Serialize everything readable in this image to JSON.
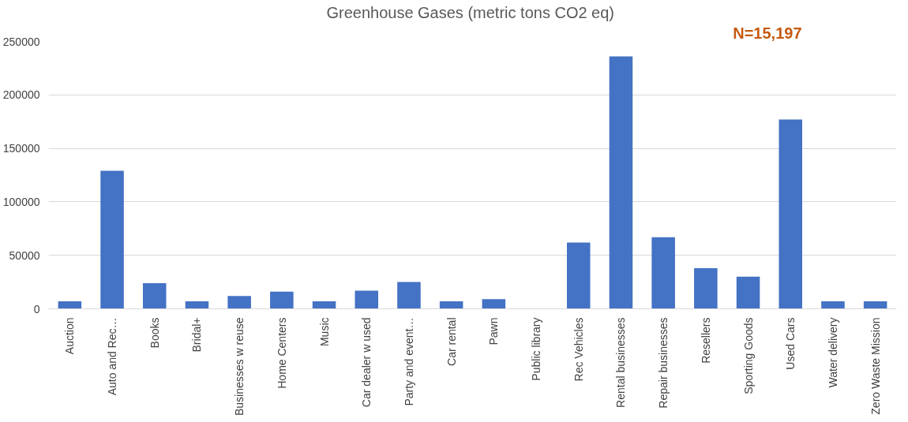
{
  "chart_data": {
    "type": "bar",
    "title": "Greenhouse  Gases (metric tons CO2 eq)",
    "categories": [
      "Auction",
      "Auto and Rec…",
      "Books",
      "Bridal+",
      "Businesses w reuse",
      "Home Centers",
      "Music",
      "Car dealer w used",
      "Party and event…",
      "Car rental",
      "Pawn",
      "Public library",
      "Rec Vehicles",
      "Rental businesses",
      "Repair businesses",
      "Resellers",
      "Sporting Goods",
      "Used Cars",
      "Water delivery",
      "Zero Waste Mission"
    ],
    "values": [
      7000,
      129000,
      24000,
      7000,
      12000,
      16000,
      7000,
      17000,
      25000,
      7000,
      9000,
      0,
      62000,
      236000,
      67000,
      38000,
      30000,
      177000,
      7000,
      7000
    ],
    "color": "#4472c4",
    "ylim": [
      0,
      250000
    ],
    "yticks": [
      0,
      50000,
      100000,
      150000,
      200000,
      250000
    ],
    "grid": "y",
    "annotations": [
      "N=15,197"
    ]
  }
}
